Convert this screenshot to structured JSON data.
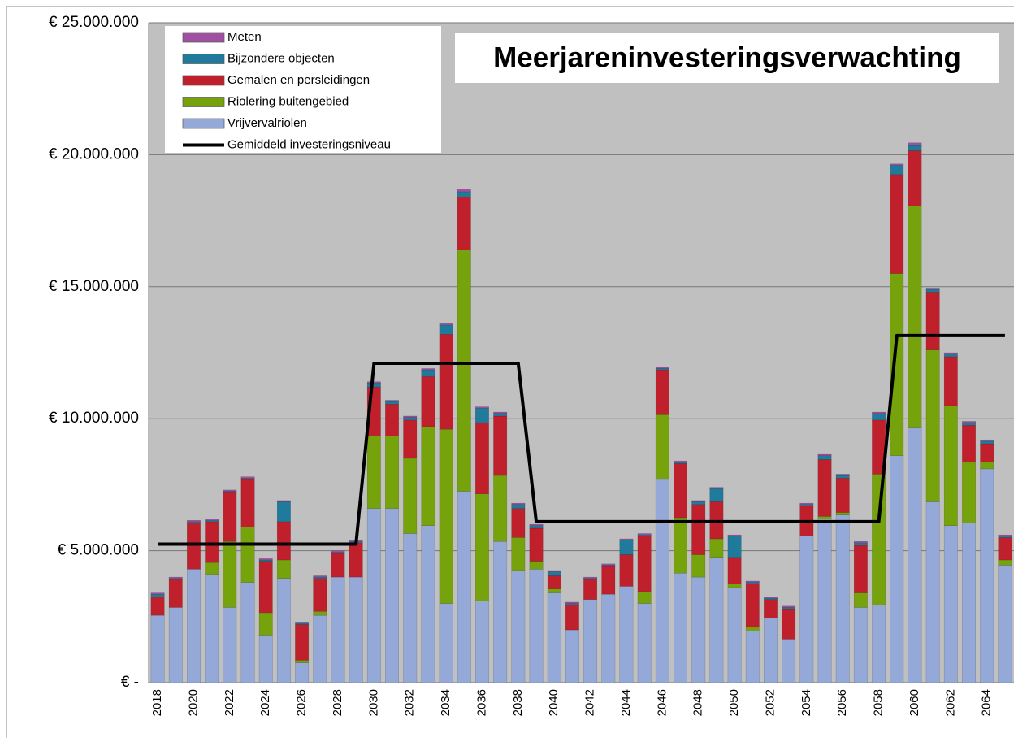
{
  "chart_data": {
    "type": "bar",
    "stacked": true,
    "title": "Meerjareninvesteringsverwachting",
    "categories": [
      "2018",
      null,
      "2020",
      null,
      "2022",
      null,
      "2024",
      null,
      "2026",
      null,
      "2028",
      null,
      "2030",
      null,
      "2032",
      null,
      "2034",
      null,
      "2036",
      null,
      "2038",
      null,
      "2040",
      null,
      "2042",
      null,
      "2044",
      null,
      "2046",
      null,
      "2048",
      null,
      "2050",
      null,
      "2052",
      null,
      "2054",
      null,
      "2056",
      null,
      "2058",
      null,
      "2060",
      null,
      "2062",
      null,
      "2064",
      null
    ],
    "series": [
      {
        "name": "Vrijvervalriolen",
        "color": "#95a9d8",
        "values": [
          2550000,
          2850000,
          4300000,
          4100000,
          2850000,
          3800000,
          1800000,
          3950000,
          750000,
          2550000,
          4000000,
          4000000,
          6600000,
          6600000,
          5650000,
          5950000,
          3000000,
          7250000,
          3100000,
          5350000,
          4250000,
          4300000,
          3400000,
          2000000,
          3150000,
          3350000,
          3650000,
          3000000,
          7700000,
          4150000,
          4000000,
          4750000,
          3600000,
          1950000,
          2450000,
          1650000,
          5550000,
          6200000,
          6350000,
          2850000,
          2950000,
          8600000,
          9650000,
          6850000,
          5950000,
          6050000,
          8100000,
          4450000
        ]
      },
      {
        "name": "Riolering buitengebied",
        "color": "#76a30c",
        "values": [
          0,
          0,
          0,
          450000,
          2500000,
          2100000,
          850000,
          700000,
          100000,
          150000,
          0,
          0,
          2750000,
          2750000,
          2850000,
          3750000,
          6600000,
          9150000,
          4050000,
          2500000,
          1250000,
          300000,
          150000,
          0,
          0,
          0,
          0,
          450000,
          2450000,
          2100000,
          850000,
          700000,
          150000,
          150000,
          0,
          0,
          0,
          100000,
          100000,
          550000,
          4950000,
          6900000,
          8400000,
          5750000,
          4550000,
          2300000,
          250000,
          200000
        ]
      },
      {
        "name": "Gemalen en persleidingen",
        "color": "#c0202c",
        "values": [
          700000,
          1050000,
          1750000,
          1550000,
          1850000,
          1800000,
          1950000,
          1450000,
          1350000,
          1250000,
          900000,
          1300000,
          1850000,
          1200000,
          1450000,
          1900000,
          3600000,
          2000000,
          2700000,
          2250000,
          1100000,
          1250000,
          500000,
          950000,
          750000,
          1050000,
          1200000,
          2100000,
          1700000,
          2050000,
          1900000,
          1400000,
          1000000,
          1650000,
          700000,
          1150000,
          1150000,
          2150000,
          1300000,
          1800000,
          2050000,
          3750000,
          2100000,
          2200000,
          1850000,
          1400000,
          700000,
          850000
        ]
      },
      {
        "name": "Bijzondere objecten",
        "color": "#1f7a9c",
        "values": [
          100000,
          50000,
          50000,
          50000,
          50000,
          50000,
          50000,
          750000,
          50000,
          50000,
          50000,
          50000,
          150000,
          100000,
          100000,
          250000,
          350000,
          200000,
          550000,
          100000,
          150000,
          100000,
          150000,
          50000,
          50000,
          50000,
          550000,
          50000,
          50000,
          50000,
          100000,
          500000,
          800000,
          50000,
          50000,
          50000,
          50000,
          150000,
          100000,
          100000,
          250000,
          350000,
          200000,
          100000,
          100000,
          100000,
          100000,
          50000
        ]
      },
      {
        "name": "Meten",
        "color": "#a050a0",
        "values": [
          50000,
          50000,
          50000,
          50000,
          50000,
          50000,
          50000,
          50000,
          50000,
          50000,
          50000,
          50000,
          50000,
          50000,
          50000,
          50000,
          50000,
          100000,
          50000,
          50000,
          50000,
          50000,
          50000,
          50000,
          50000,
          50000,
          50000,
          50000,
          50000,
          50000,
          50000,
          50000,
          50000,
          50000,
          50000,
          50000,
          50000,
          50000,
          50000,
          50000,
          50000,
          50000,
          100000,
          50000,
          50000,
          50000,
          50000,
          50000
        ]
      },
      {
        "name": "Gemiddeld investeringsniveau",
        "type": "line",
        "color": "#000000",
        "values": [
          5250000,
          5250000,
          5250000,
          5250000,
          5250000,
          5250000,
          5250000,
          5250000,
          5250000,
          5250000,
          5250000,
          5250000,
          12100000,
          12100000,
          12100000,
          12100000,
          12100000,
          12100000,
          12100000,
          12100000,
          12100000,
          6100000,
          6100000,
          6100000,
          6100000,
          6100000,
          6100000,
          6100000,
          6100000,
          6100000,
          6100000,
          6100000,
          6100000,
          6100000,
          6100000,
          6100000,
          6100000,
          6100000,
          6100000,
          6100000,
          6100000,
          13150000,
          13150000,
          13150000,
          13150000,
          13150000,
          13150000,
          13150000
        ]
      }
    ],
    "ylim": [
      0,
      25000000
    ],
    "yticks": [
      {
        "value": 0,
        "label": "€ -"
      },
      {
        "value": 5000000,
        "label": "€ 5.000.000"
      },
      {
        "value": 10000000,
        "label": "€ 10.000.000"
      },
      {
        "value": 15000000,
        "label": "€ 15.000.000"
      },
      {
        "value": 20000000,
        "label": "€ 20.000.000"
      },
      {
        "value": 25000000,
        "label": "€ 25.000.000"
      }
    ],
    "grid": true,
    "legend": "top-left"
  }
}
